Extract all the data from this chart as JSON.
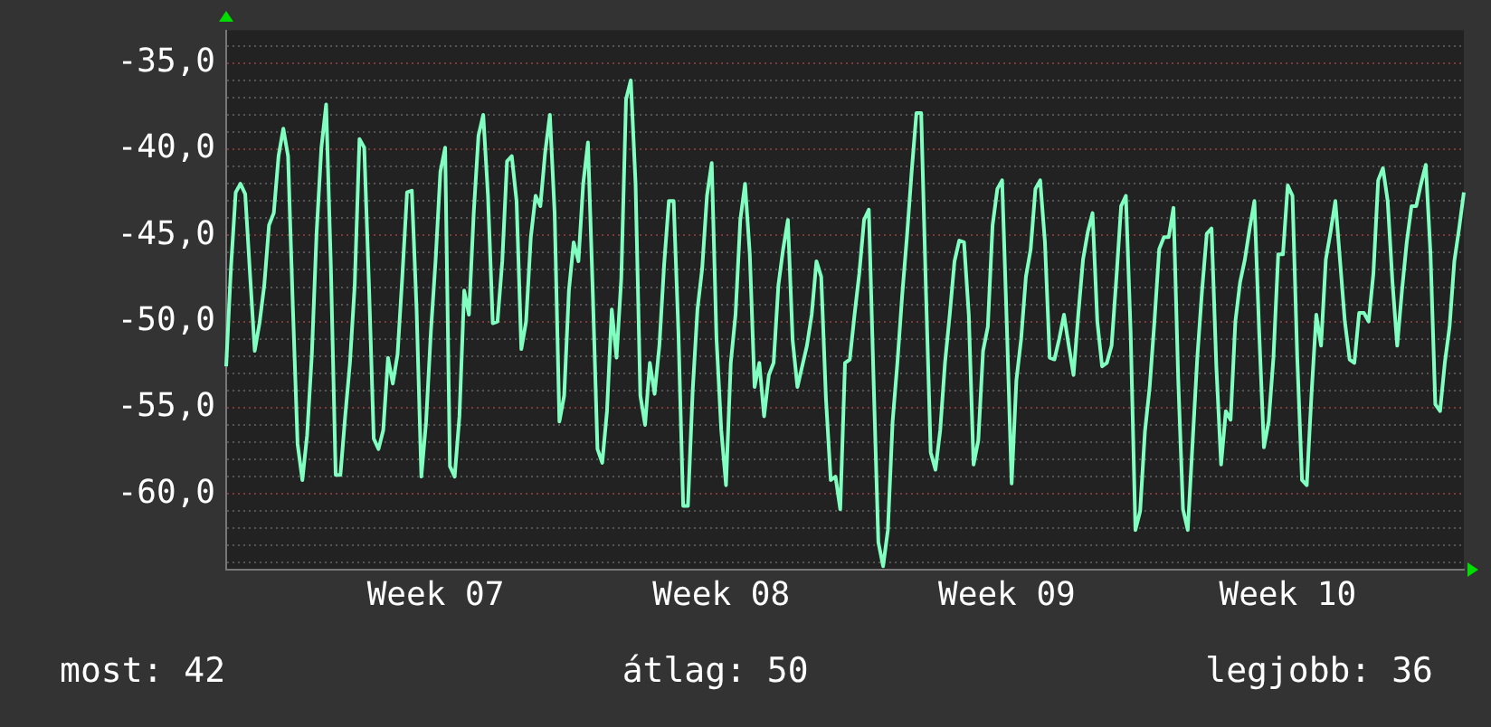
{
  "chart_data": {
    "type": "line",
    "categories": [
      null,
      null,
      null,
      null,
      null,
      null,
      null,
      null,
      null,
      null,
      null,
      null,
      null,
      null,
      null,
      null,
      null,
      null,
      null,
      null,
      null,
      null,
      null,
      null,
      null,
      null,
      null,
      null,
      null,
      null,
      null,
      null,
      null,
      null,
      null,
      null,
      null,
      null,
      null,
      null,
      null,
      null,
      null,
      null,
      "Week 07",
      null,
      null,
      null,
      null,
      null,
      null,
      null,
      null,
      null,
      null,
      null,
      null,
      null,
      null,
      null,
      null,
      null,
      null,
      null,
      null,
      null,
      null,
      null,
      null,
      null,
      null,
      null,
      null,
      null,
      null,
      null,
      null,
      null,
      null,
      null,
      null,
      null,
      null,
      null,
      null,
      null,
      null,
      null,
      null,
      null,
      null,
      null,
      null,
      null,
      null,
      null,
      null,
      null,
      null,
      null,
      null,
      null,
      null,
      null,
      "Week 08",
      null,
      null,
      null,
      null,
      null,
      null,
      null,
      null,
      null,
      null,
      null,
      null,
      null,
      null,
      null,
      null,
      null,
      null,
      null,
      null,
      null,
      null,
      null,
      null,
      null,
      null,
      null,
      null,
      null,
      null,
      null,
      null,
      null,
      null,
      null,
      null,
      null,
      null,
      null,
      null,
      null,
      null,
      null,
      null,
      null,
      null,
      null,
      null,
      null,
      null,
      null,
      null,
      null,
      null,
      null,
      null,
      null,
      null,
      null,
      "Week 09",
      null,
      null,
      null,
      null,
      null,
      null,
      null,
      null,
      null,
      null,
      null,
      null,
      null,
      null,
      null,
      null,
      null,
      null,
      null,
      null,
      null,
      null,
      null,
      null,
      null,
      null,
      null,
      null,
      null,
      null,
      null,
      null,
      null,
      null,
      null,
      null,
      null,
      null,
      null,
      null,
      null,
      null,
      null,
      null,
      null,
      null,
      null,
      null,
      null,
      null,
      null,
      null,
      null,
      null,
      null,
      null,
      null,
      null,
      "Week 10",
      null,
      null,
      null,
      null,
      null,
      null,
      null,
      null,
      null,
      null,
      null,
      null,
      null,
      null,
      null,
      null,
      null,
      null,
      null,
      null,
      null,
      null,
      null,
      null,
      null,
      null,
      null,
      null,
      null,
      null,
      null,
      null,
      null,
      null,
      null,
      null,
      null
    ],
    "series": [
      {
        "color": "#80ffc0",
        "values": [
          -52.6,
          -46.9,
          -42.5,
          -42.0,
          -42.6,
          -47.2,
          -51.7,
          -50.1,
          -47.9,
          -44.4,
          -43.7,
          -40.4,
          -38.8,
          -40.4,
          -49.1,
          -57.1,
          -59.2,
          -56.6,
          -51.9,
          -44.8,
          -39.9,
          -37.4,
          -46.9,
          -58.9,
          -58.9,
          -55.5,
          -52.4,
          -47.9,
          -39.4,
          -39.9,
          -47.9,
          -56.8,
          -57.4,
          -56.3,
          -52.1,
          -53.6,
          -51.9,
          -47.4,
          -42.5,
          -42.4,
          -49.3,
          -59.0,
          -55.8,
          -50.6,
          -46.4,
          -41.3,
          -39.9,
          -58.4,
          -59.0,
          -55.5,
          -48.2,
          -49.6,
          -43.7,
          -39.2,
          -38.0,
          -42.7,
          -50.1,
          -50.0,
          -46.5,
          -40.7,
          -40.4,
          -43.0,
          -51.6,
          -50.0,
          -45.1,
          -42.7,
          -43.3,
          -40.2,
          -38.0,
          -43.7,
          -55.8,
          -54.3,
          -48.2,
          -45.4,
          -46.5,
          -42.0,
          -39.6,
          -48.2,
          -57.4,
          -58.2,
          -55.2,
          -49.3,
          -52.1,
          -47.5,
          -37.1,
          -36.0,
          -42.0,
          -54.3,
          -56.0,
          -52.4,
          -54.2,
          -51.4,
          -46.7,
          -43.0,
          -43.0,
          -50.6,
          -60.7,
          -60.7,
          -54.0,
          -49.3,
          -46.9,
          -42.7,
          -40.8,
          -51.0,
          -56.3,
          -59.5,
          -52.4,
          -49.6,
          -44.1,
          -42.0,
          -46.1,
          -53.8,
          -52.4,
          -55.5,
          -53.1,
          -52.4,
          -47.9,
          -45.8,
          -44.1,
          -51.1,
          -53.8,
          -52.6,
          -51.4,
          -49.6,
          -46.5,
          -47.4,
          -54.5,
          -59.2,
          -59.0,
          -60.9,
          -52.4,
          -52.2,
          -49.6,
          -47.2,
          -44.1,
          -43.5,
          -53.4,
          -62.8,
          -64.2,
          -62.1,
          -55.8,
          -52.4,
          -48.5,
          -45.1,
          -41.3,
          -37.9,
          -37.9,
          -48.2,
          -57.6,
          -58.6,
          -56.3,
          -52.4,
          -49.6,
          -46.5,
          -45.3,
          -45.4,
          -49.6,
          -58.3,
          -56.9,
          -51.7,
          -50.3,
          -44.4,
          -42.3,
          -41.8,
          -50.3,
          -59.4,
          -53.4,
          -51.0,
          -47.4,
          -45.8,
          -42.3,
          -41.8,
          -45.4,
          -52.1,
          -52.2,
          -51.0,
          -49.6,
          -51.4,
          -53.1,
          -49.6,
          -46.4,
          -44.8,
          -43.7,
          -50.0,
          -52.6,
          -52.4,
          -51.4,
          -47.5,
          -43.3,
          -42.7,
          -50.6,
          -62.1,
          -61.0,
          -56.4,
          -53.8,
          -50.0,
          -45.8,
          -45.1,
          -45.1,
          -43.4,
          -53.4,
          -60.9,
          -62.1,
          -57.1,
          -52.1,
          -48.2,
          -44.9,
          -44.6,
          -52.6,
          -58.3,
          -55.2,
          -55.7,
          -50.0,
          -47.7,
          -46.4,
          -44.6,
          -43.0,
          -50.6,
          -57.3,
          -55.8,
          -52.1,
          -46.1,
          -46.1,
          -42.1,
          -42.7,
          -52.1,
          -59.2,
          -59.5,
          -54.2,
          -49.6,
          -51.4,
          -46.4,
          -44.8,
          -43.0,
          -46.5,
          -50.0,
          -52.2,
          -52.4,
          -49.5,
          -49.5,
          -50.0,
          -47.2,
          -41.8,
          -41.1,
          -43.0,
          -47.7,
          -51.4,
          -48.2,
          -45.4,
          -43.3,
          -43.3,
          -42.0,
          -40.9,
          -46.1,
          -54.8,
          -55.2,
          -52.4,
          -50.3,
          -46.5,
          -44.6,
          -42.5
        ]
      }
    ],
    "ylim": [
      -64.4,
      -33.1
    ],
    "yticks": [
      {
        "value": -34,
        "label": null
      },
      {
        "value": -35,
        "label": "-35,0"
      },
      {
        "value": -36,
        "label": null
      },
      {
        "value": -37,
        "label": null
      },
      {
        "value": -38,
        "label": null
      },
      {
        "value": -39,
        "label": null
      },
      {
        "value": -40,
        "label": "-40,0"
      },
      {
        "value": -41,
        "label": null
      },
      {
        "value": -42,
        "label": null
      },
      {
        "value": -43,
        "label": null
      },
      {
        "value": -44,
        "label": null
      },
      {
        "value": -45,
        "label": "-45,0"
      },
      {
        "value": -46,
        "label": null
      },
      {
        "value": -47,
        "label": null
      },
      {
        "value": -48,
        "label": null
      },
      {
        "value": -49,
        "label": null
      },
      {
        "value": -50,
        "label": "-50,0"
      },
      {
        "value": -51,
        "label": null
      },
      {
        "value": -52,
        "label": null
      },
      {
        "value": -53,
        "label": null
      },
      {
        "value": -54,
        "label": null
      },
      {
        "value": -55,
        "label": "-55,0"
      },
      {
        "value": -56,
        "label": null
      },
      {
        "value": -57,
        "label": null
      },
      {
        "value": -58,
        "label": null
      },
      {
        "value": -59,
        "label": null
      },
      {
        "value": -60,
        "label": "-60,0"
      },
      {
        "value": -61,
        "label": null
      },
      {
        "value": -62,
        "label": null
      },
      {
        "value": -63,
        "label": null
      },
      {
        "value": -64,
        "label": null
      }
    ],
    "grid": "y",
    "marker": "none",
    "line_style": "solid",
    "annotations": [
      "most: 42",
      "átlag: 50",
      "legjobb: 36"
    ]
  }
}
